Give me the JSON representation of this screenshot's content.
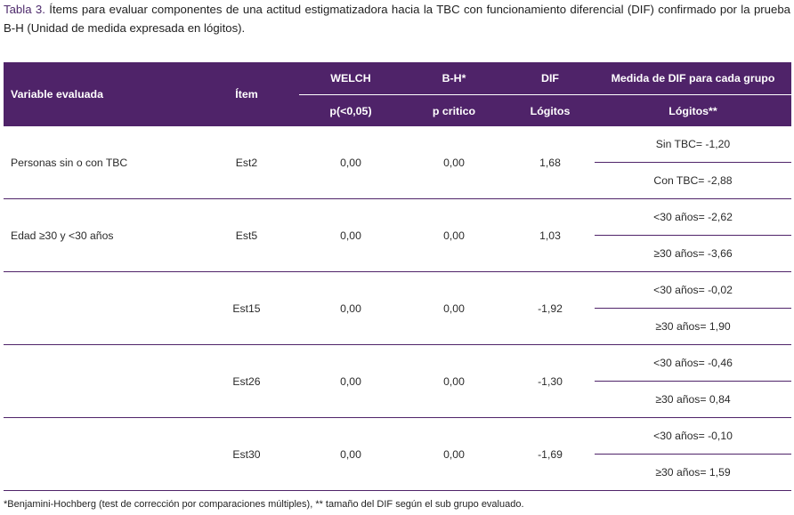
{
  "caption": {
    "label": "Tabla 3.",
    "text": " Ítems para evaluar componentes de una actitud estigmatizadora hacia la TBC con funcionamiento diferencial (DIF) confirmado por la prueba B-H (Unidad de medida expresada en lógitos)."
  },
  "headers": {
    "variable": "Variable evaluada",
    "item": "Ítem",
    "welch": "WELCH",
    "welch_sub": "p(<0,05)",
    "bh": "B-H*",
    "bh_sub": "p critico",
    "dif": "DIF",
    "dif_sub": "Lógitos",
    "medida": "Medida de DIF para cada grupo",
    "medida_sub": "Lógitos**"
  },
  "rows": [
    {
      "variable": "Personas sin o con TBC",
      "item": "Est2",
      "welch": "0,00",
      "bh": "0,00",
      "dif": "1,68",
      "g1": "Sin TBC=  -1,20",
      "g2": "Con TBC= -2,88"
    },
    {
      "variable": "Edad ≥30 y <30 años",
      "item": "Est5",
      "welch": "0,00",
      "bh": "0,00",
      "dif": "1,03",
      "g1": "<30 años=  -2,62",
      "g2": "≥30 años=  -3,66"
    },
    {
      "variable": "",
      "item": "Est15",
      "welch": "0,00",
      "bh": "0,00",
      "dif": "-1,92",
      "g1": "<30 años= -0,02",
      "g2": "≥30 años=   1,90"
    },
    {
      "variable": "",
      "item": "Est26",
      "welch": "0,00",
      "bh": "0,00",
      "dif": "-1,30",
      "g1": "<30 años= -0,46",
      "g2": "≥30 años=   0,84"
    },
    {
      "variable": "",
      "item": "Est30",
      "welch": "0,00",
      "bh": "0,00",
      "dif": "-1,69",
      "g1": "<30 años= -0,10",
      "g2": "≥30 años=  1,59"
    }
  ],
  "footnote": "*Benjamini-Hochberg (test de corrección por comparaciones múltiples), ** tamaño del DIF según el sub grupo evaluado.",
  "colors": {
    "header_bg": "#4f2369",
    "header_text": "#ffffff",
    "rule": "#4f2369",
    "label": "#4d2a6b"
  }
}
